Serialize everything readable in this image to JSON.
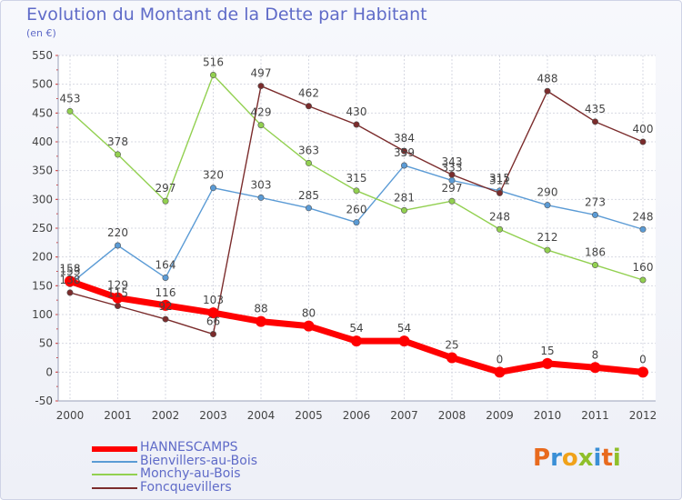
{
  "title": "Evolution du Montant de la Dette par Habitant",
  "subtitle": "(en €)",
  "logo": {
    "letters": [
      "P",
      "r",
      "o",
      "x",
      "i",
      "t",
      "i"
    ],
    "colors": [
      "#e86a1e",
      "#3a8fd6",
      "#f0a21a",
      "#8fbf2a",
      "#3a8fd6",
      "#e86a1e",
      "#8fbf2a"
    ]
  },
  "chart_data": {
    "type": "line",
    "categories": [
      "2000",
      "2001",
      "2002",
      "2003",
      "2004",
      "2005",
      "2006",
      "2007",
      "2008",
      "2009",
      "2010",
      "2011",
      "2012"
    ],
    "ylim": [
      -50,
      550
    ],
    "yticks": [
      "550",
      "500",
      "450",
      "400",
      "350",
      "300",
      "250",
      "200",
      "150",
      "100",
      "50",
      "0",
      "-50"
    ],
    "grid": true,
    "legend_position": "bottom-left",
    "series": [
      {
        "name": "HANNESCAMPS",
        "color": "#ff0000",
        "values": [
          158,
          129,
          116,
          103,
          88,
          80,
          54,
          54,
          25,
          0,
          15,
          8,
          0
        ],
        "labels": [
          "158",
          "129",
          "116",
          "103",
          "88",
          "80",
          "54",
          "54",
          "25",
          "0",
          "15",
          "8",
          "0"
        ]
      },
      {
        "name": "Bienvillers-au-Bois",
        "color": "#5b9bd5",
        "values": [
          153,
          220,
          164,
          320,
          303,
          285,
          260,
          359,
          333,
          315,
          290,
          273,
          248
        ],
        "labels": [
          "153",
          "220",
          "164",
          "320",
          "303",
          "285",
          "260",
          "359",
          "333",
          "315",
          "290",
          "273",
          "248"
        ]
      },
      {
        "name": "Monchy-au-Bois",
        "color": "#92d050",
        "values": [
          453,
          378,
          297,
          516,
          429,
          363,
          315,
          281,
          297,
          248,
          212,
          186,
          160
        ],
        "labels": [
          "453",
          "378",
          "297",
          "516",
          "429",
          "363",
          "315",
          "281",
          "297",
          "248",
          "212",
          "186",
          "160"
        ]
      },
      {
        "name": "Foncquevillers",
        "color": "#7b2c2c",
        "values": [
          138,
          115,
          92,
          66,
          497,
          462,
          430,
          384,
          343,
          311,
          488,
          435,
          400
        ],
        "labels": [
          "138",
          "115",
          "92",
          "66",
          "497",
          "462",
          "430",
          "384",
          "343",
          "311",
          "488",
          "435",
          "400"
        ]
      }
    ]
  }
}
